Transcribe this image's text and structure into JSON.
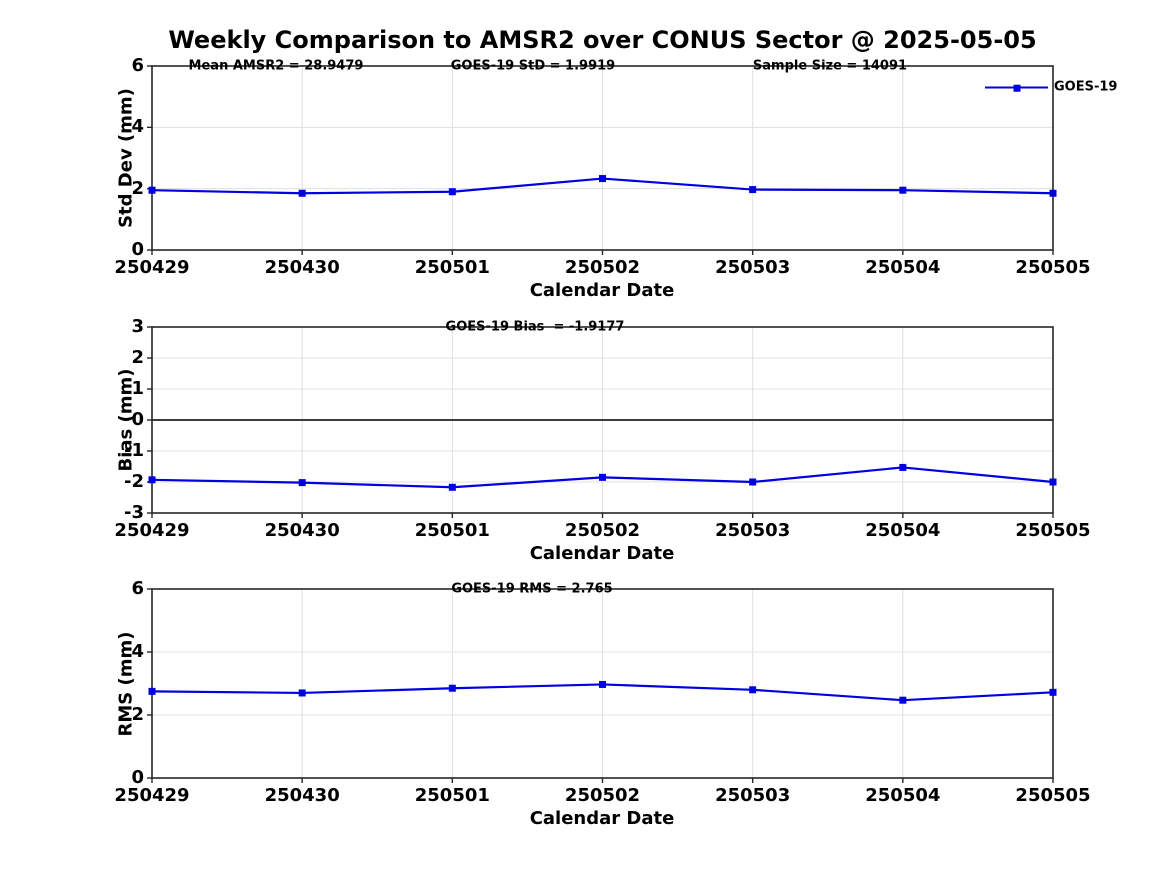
{
  "title": "Weekly Comparison to AMSR2 over CONUS Sector @ 2025-05-05",
  "legend": {
    "label": "GOES-19"
  },
  "colors": {
    "line": "#0000e0",
    "grid": "#e0e0e0",
    "axis": "#262626",
    "zero_line": "#3c3c3c",
    "text": "#000000",
    "background": "#ffffff"
  },
  "chart_data": [
    {
      "type": "line",
      "name": "std-dev",
      "annotations": [
        "Mean AMSR2 = 28.9479",
        "GOES-19 StD = 1.9919",
        "Sample Size = 14091"
      ],
      "categories": [
        "250429",
        "250430",
        "250501",
        "250502",
        "250503",
        "250504",
        "250505"
      ],
      "series": [
        {
          "name": "GOES-19",
          "values": [
            1.95,
            1.85,
            1.9,
            2.33,
            1.97,
            1.95,
            1.85
          ]
        }
      ],
      "xlabel": "Calendar Date",
      "ylabel": "Std Dev (mm)",
      "ylim": [
        0,
        6
      ],
      "yticks": [
        0,
        2,
        4,
        6
      ],
      "grid": true,
      "legend_position": "northeast",
      "marker": "square"
    },
    {
      "type": "line",
      "name": "bias",
      "annotations": [
        "GOES-19 Bias  = -1.9177"
      ],
      "categories": [
        "250429",
        "250430",
        "250501",
        "250502",
        "250503",
        "250504",
        "250505"
      ],
      "series": [
        {
          "name": "GOES-19",
          "values": [
            -1.93,
            -2.02,
            -2.17,
            -1.85,
            -2.0,
            -1.53,
            -2.0
          ]
        }
      ],
      "xlabel": "Calendar Date",
      "ylabel": "Bias (mm)",
      "ylim": [
        -3,
        3
      ],
      "yticks": [
        -3,
        -2,
        -1,
        0,
        1,
        2,
        3
      ],
      "grid": true,
      "zero_line": true,
      "marker": "square"
    },
    {
      "type": "line",
      "name": "rms",
      "annotations": [
        "GOES-19 RMS = 2.765"
      ],
      "categories": [
        "250429",
        "250430",
        "250501",
        "250502",
        "250503",
        "250504",
        "250505"
      ],
      "series": [
        {
          "name": "GOES-19",
          "values": [
            2.75,
            2.7,
            2.85,
            2.97,
            2.8,
            2.47,
            2.72
          ]
        }
      ],
      "xlabel": "Calendar Date",
      "ylabel": "RMS (mm)",
      "ylim": [
        0,
        6
      ],
      "yticks": [
        0,
        2,
        4,
        6
      ],
      "grid": true,
      "marker": "square"
    }
  ]
}
